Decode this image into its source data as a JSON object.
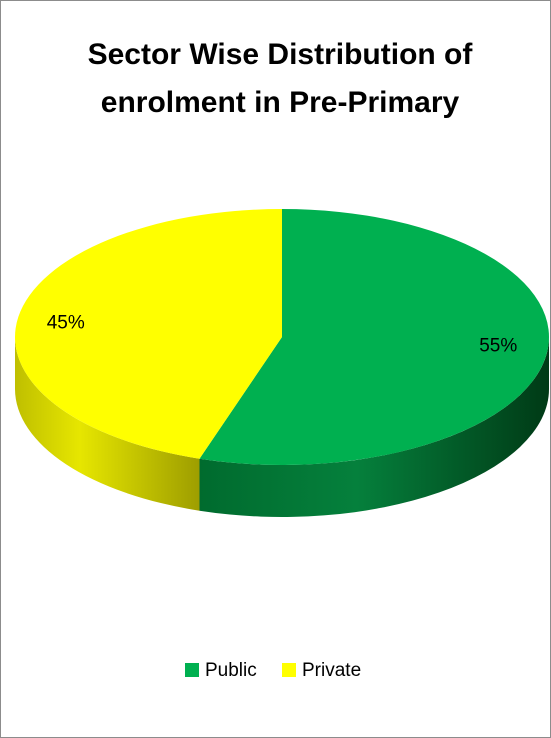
{
  "chart_data": {
    "type": "pie",
    "title_lines": [
      "Sector Wise Distribution of",
      "enrolment in Pre-Primary"
    ],
    "slices": [
      {
        "label": "Public",
        "value": 55,
        "display": "55%",
        "color": "#00b050"
      },
      {
        "label": "Private",
        "value": 45,
        "display": "45%",
        "color": "#ffff00"
      }
    ],
    "legend": {
      "placement": "bottom",
      "entries": [
        "Public",
        "Private"
      ]
    },
    "style": "3d"
  }
}
